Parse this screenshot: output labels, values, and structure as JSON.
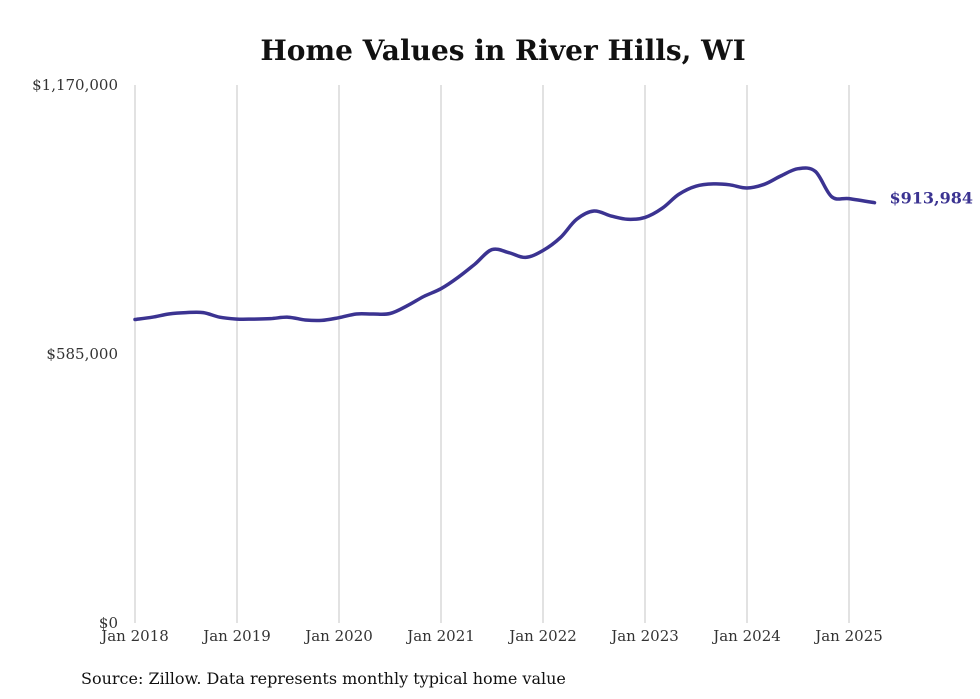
{
  "chart_data": {
    "type": "line",
    "title": "Home Values in River Hills, WI",
    "xlabel": "",
    "ylabel": "",
    "x_tick_labels": [
      "Jan 2018",
      "Jan 2019",
      "Jan 2020",
      "Jan 2021",
      "Jan 2022",
      "Jan 2023",
      "Jan 2024",
      "Jan 2025"
    ],
    "x_tick_values": [
      2018.0,
      2019.0,
      2020.0,
      2021.0,
      2022.0,
      2023.0,
      2024.0,
      2025.0
    ],
    "y_tick_labels": [
      "$0",
      "$585,000",
      "$1,170,000"
    ],
    "y_tick_values": [
      0,
      585000,
      1170000
    ],
    "ylim": [
      0,
      1170000
    ],
    "grid": "vertical lines at x ticks",
    "colors": {
      "line": "#3b3391",
      "grid": "#c4c4c4",
      "end_label": "#3b3391"
    },
    "series": [
      {
        "x": [
          2018.0,
          2018.17,
          2018.33,
          2018.5,
          2018.67,
          2018.83,
          2019.0,
          2019.17,
          2019.33,
          2019.5,
          2019.67,
          2019.83,
          2020.0,
          2020.17,
          2020.33,
          2020.5,
          2020.67,
          2020.83,
          2021.0,
          2021.17,
          2021.33,
          2021.5,
          2021.67,
          2021.83,
          2022.0,
          2022.17,
          2022.33,
          2022.5,
          2022.67,
          2022.83,
          2023.0,
          2023.17,
          2023.33,
          2023.5,
          2023.67,
          2023.83,
          2024.0,
          2024.17,
          2024.33,
          2024.5,
          2024.67,
          2024.83,
          2025.0,
          2025.25
        ],
        "values": [
          660000,
          665000,
          672000,
          675000,
          675000,
          665000,
          661000,
          661000,
          662000,
          665000,
          659000,
          658000,
          664000,
          672000,
          672000,
          673000,
          690000,
          710000,
          727000,
          752000,
          780000,
          812000,
          805000,
          795000,
          810000,
          838000,
          878000,
          896000,
          885000,
          878000,
          882000,
          902000,
          932000,
          950000,
          955000,
          953000,
          946000,
          954000,
          972000,
          988000,
          982000,
          927000,
          923000,
          913984
        ]
      }
    ],
    "end_label": "$913,984",
    "source": "Source: Zillow. Data represents monthly typical home value"
  }
}
